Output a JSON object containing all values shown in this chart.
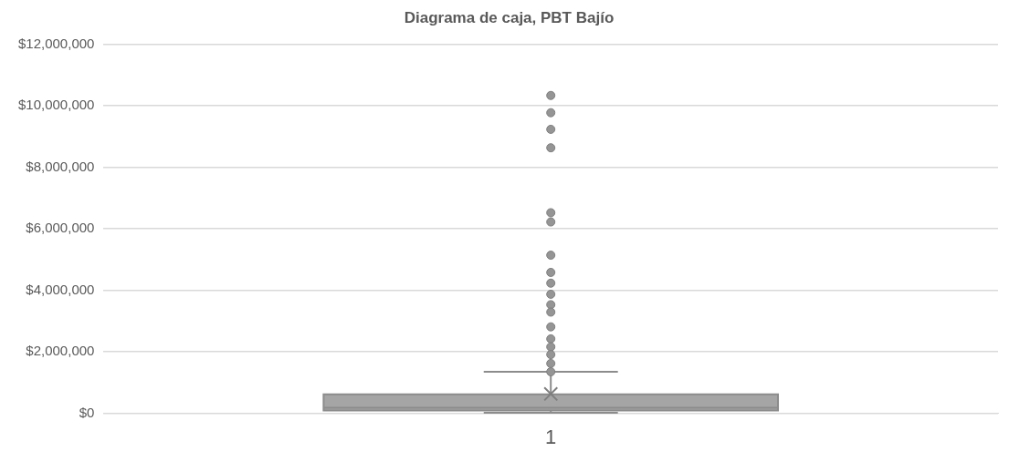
{
  "chart_data": {
    "type": "box",
    "title": "Diagrama de caja, PBT Bajío",
    "categories": [
      "1"
    ],
    "boxes": [
      {
        "low": 20000,
        "q1": 90000,
        "median": 180000,
        "q3": 620000,
        "high": 1350000,
        "mean": 630000,
        "outliers": [
          10330000,
          9770000,
          9230000,
          8630000,
          6520000,
          6220000,
          5140000,
          4580000,
          4230000,
          3870000,
          3530000,
          3290000,
          2810000,
          2420000,
          2160000,
          1910000,
          1620000,
          1350000
        ]
      }
    ],
    "color": "#a5a5a5",
    "ylim": [
      0,
      12000000
    ],
    "yticks": [
      {
        "value": 0,
        "label": "$0"
      },
      {
        "value": 2000000,
        "label": "$2,000,000"
      },
      {
        "value": 4000000,
        "label": "$4,000,000"
      },
      {
        "value": 6000000,
        "label": "$6,000,000"
      },
      {
        "value": 8000000,
        "label": "$8,000,000"
      },
      {
        "value": 10000000,
        "label": "$10,000,000"
      },
      {
        "value": 12000000,
        "label": "$12,000,000"
      }
    ],
    "grid": "y",
    "legend": false,
    "marker": "circle"
  }
}
